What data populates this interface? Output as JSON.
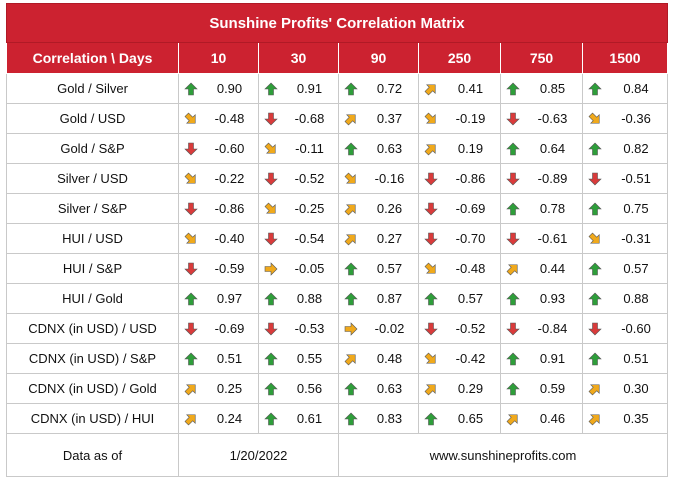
{
  "title": "Sunshine Profits' Correlation Matrix",
  "header": {
    "first": "Correlation \\ Days",
    "days": [
      "10",
      "30",
      "90",
      "250",
      "750",
      "1500"
    ]
  },
  "rows": [
    {
      "label": "Gold / Silver",
      "cells": [
        {
          "v": "0.90",
          "d": "up"
        },
        {
          "v": "0.91",
          "d": "up"
        },
        {
          "v": "0.72",
          "d": "up"
        },
        {
          "v": "0.41",
          "d": "up-right"
        },
        {
          "v": "0.85",
          "d": "up"
        },
        {
          "v": "0.84",
          "d": "up"
        }
      ]
    },
    {
      "label": "Gold / USD",
      "cells": [
        {
          "v": "-0.48",
          "d": "down-right"
        },
        {
          "v": "-0.68",
          "d": "down"
        },
        {
          "v": "0.37",
          "d": "up-right"
        },
        {
          "v": "-0.19",
          "d": "down-right"
        },
        {
          "v": "-0.63",
          "d": "down"
        },
        {
          "v": "-0.36",
          "d": "down-right"
        }
      ]
    },
    {
      "label": "Gold / S&P",
      "cells": [
        {
          "v": "-0.60",
          "d": "down"
        },
        {
          "v": "-0.11",
          "d": "down-right"
        },
        {
          "v": "0.63",
          "d": "up"
        },
        {
          "v": "0.19",
          "d": "up-right"
        },
        {
          "v": "0.64",
          "d": "up"
        },
        {
          "v": "0.82",
          "d": "up"
        }
      ]
    },
    {
      "label": "Silver / USD",
      "cells": [
        {
          "v": "-0.22",
          "d": "down-right"
        },
        {
          "v": "-0.52",
          "d": "down"
        },
        {
          "v": "-0.16",
          "d": "down-right"
        },
        {
          "v": "-0.86",
          "d": "down"
        },
        {
          "v": "-0.89",
          "d": "down"
        },
        {
          "v": "-0.51",
          "d": "down"
        }
      ]
    },
    {
      "label": "Silver / S&P",
      "cells": [
        {
          "v": "-0.86",
          "d": "down"
        },
        {
          "v": "-0.25",
          "d": "down-right"
        },
        {
          "v": "0.26",
          "d": "up-right"
        },
        {
          "v": "-0.69",
          "d": "down"
        },
        {
          "v": "0.78",
          "d": "up"
        },
        {
          "v": "0.75",
          "d": "up"
        }
      ]
    },
    {
      "label": "HUI / USD",
      "cells": [
        {
          "v": "-0.40",
          "d": "down-right"
        },
        {
          "v": "-0.54",
          "d": "down"
        },
        {
          "v": "0.27",
          "d": "up-right"
        },
        {
          "v": "-0.70",
          "d": "down"
        },
        {
          "v": "-0.61",
          "d": "down"
        },
        {
          "v": "-0.31",
          "d": "down-right"
        }
      ]
    },
    {
      "label": "HUI / S&P",
      "cells": [
        {
          "v": "-0.59",
          "d": "down"
        },
        {
          "v": "-0.05",
          "d": "right"
        },
        {
          "v": "0.57",
          "d": "up"
        },
        {
          "v": "-0.48",
          "d": "down-right"
        },
        {
          "v": "0.44",
          "d": "up-right"
        },
        {
          "v": "0.57",
          "d": "up"
        }
      ]
    },
    {
      "label": "HUI / Gold",
      "cells": [
        {
          "v": "0.97",
          "d": "up"
        },
        {
          "v": "0.88",
          "d": "up"
        },
        {
          "v": "0.87",
          "d": "up"
        },
        {
          "v": "0.57",
          "d": "up"
        },
        {
          "v": "0.93",
          "d": "up"
        },
        {
          "v": "0.88",
          "d": "up"
        }
      ]
    },
    {
      "label": "CDNX (in USD) / USD",
      "cells": [
        {
          "v": "-0.69",
          "d": "down"
        },
        {
          "v": "-0.53",
          "d": "down"
        },
        {
          "v": "-0.02",
          "d": "right"
        },
        {
          "v": "-0.52",
          "d": "down"
        },
        {
          "v": "-0.84",
          "d": "down"
        },
        {
          "v": "-0.60",
          "d": "down"
        }
      ]
    },
    {
      "label": "CDNX (in USD) / S&P",
      "cells": [
        {
          "v": "0.51",
          "d": "up"
        },
        {
          "v": "0.55",
          "d": "up"
        },
        {
          "v": "0.48",
          "d": "up-right"
        },
        {
          "v": "-0.42",
          "d": "down-right"
        },
        {
          "v": "0.91",
          "d": "up"
        },
        {
          "v": "0.51",
          "d": "up"
        }
      ]
    },
    {
      "label": "CDNX (in USD) / Gold",
      "cells": [
        {
          "v": "0.25",
          "d": "up-right"
        },
        {
          "v": "0.56",
          "d": "up"
        },
        {
          "v": "0.63",
          "d": "up"
        },
        {
          "v": "0.29",
          "d": "up-right"
        },
        {
          "v": "0.59",
          "d": "up"
        },
        {
          "v": "0.30",
          "d": "up-right"
        }
      ]
    },
    {
      "label": "CDNX (in USD) / HUI",
      "cells": [
        {
          "v": "0.24",
          "d": "up-right"
        },
        {
          "v": "0.61",
          "d": "up"
        },
        {
          "v": "0.83",
          "d": "up"
        },
        {
          "v": "0.65",
          "d": "up"
        },
        {
          "v": "0.46",
          "d": "up-right"
        },
        {
          "v": "0.35",
          "d": "up-right"
        }
      ]
    }
  ],
  "footer": {
    "label": "Data as of",
    "date": "1/20/2022",
    "site": "www.sunshineprofits.com"
  },
  "colors": {
    "header_bg": "#cc2230",
    "arrow_up": "#2e9e3a",
    "arrow_down": "#d93b3b",
    "arrow_side": "#f0a91c"
  }
}
